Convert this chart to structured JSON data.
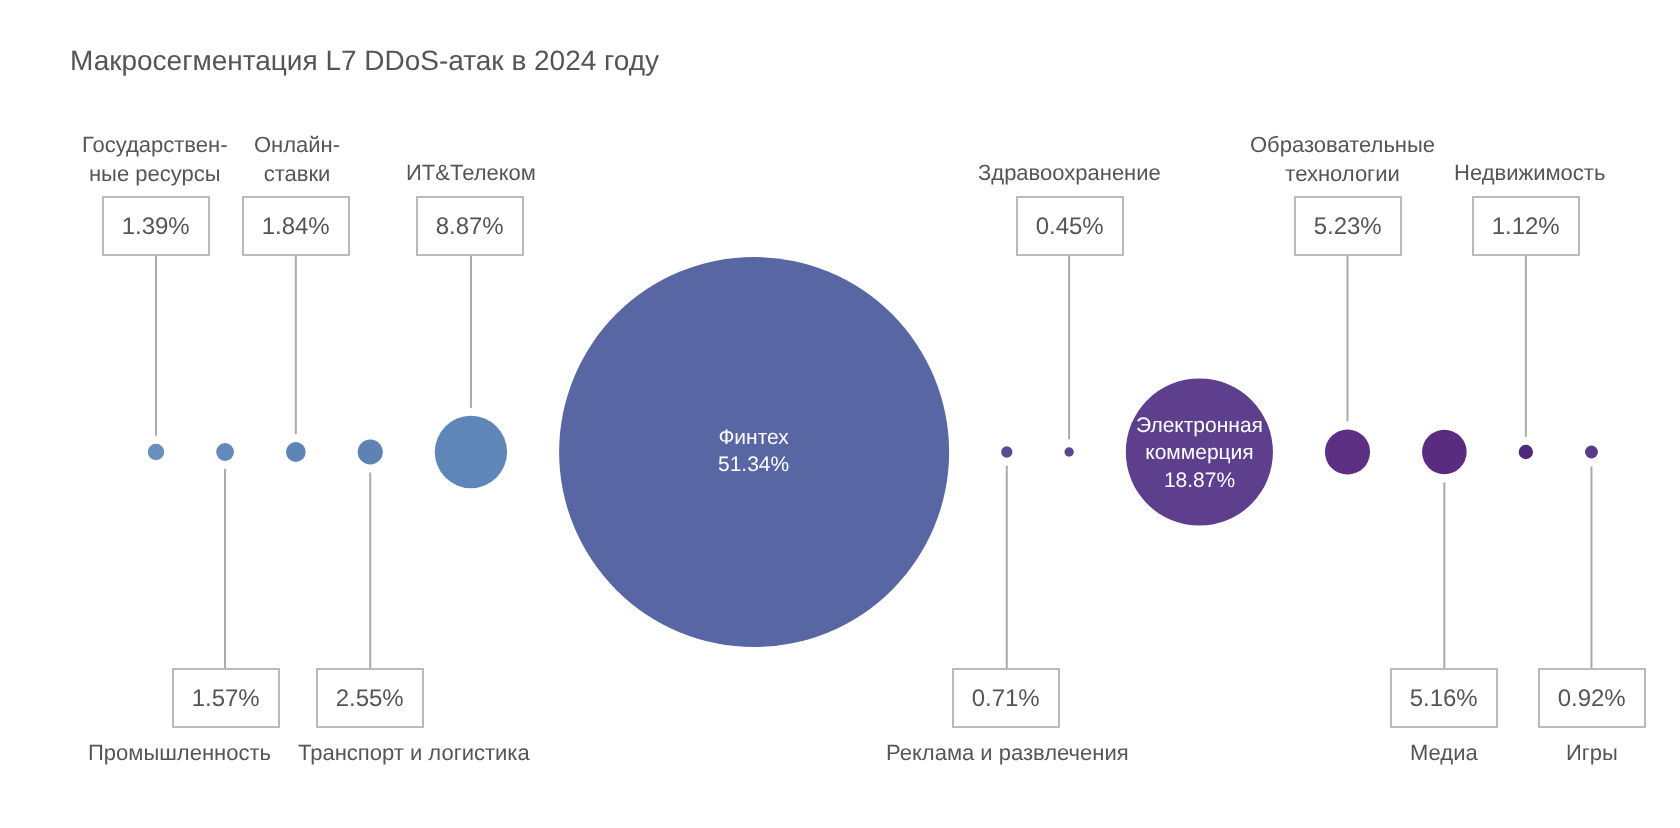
{
  "chart_data": {
    "type": "other",
    "title": "Макросегментация L7 DDoS-атак в 2024 году",
    "categories": [
      "Государствен-\nные ресурсы",
      "Промышленность",
      "Онлайн-\nставки",
      "Транспорт и логистика",
      "ИТ&Телеком",
      "Финтех",
      "Реклама и развлечения",
      "Здравоохранение",
      "Электронная\nкоммерция",
      "Образовательные\nтехнологии",
      "Медиа",
      "Недвижимость",
      "Игры"
    ],
    "values": [
      1.39,
      1.57,
      1.84,
      2.55,
      8.87,
      51.34,
      0.71,
      0.45,
      18.87,
      5.23,
      5.16,
      1.12,
      0.92
    ],
    "value_labels": [
      "1.39%",
      "1.57%",
      "1.84%",
      "2.55%",
      "8.87%",
      "51.34%",
      "0.71%",
      "0.45%",
      "18.87%",
      "5.23%",
      "5.16%",
      "1.12%",
      "0.92%"
    ],
    "colors": [
      "#6a8fbf",
      "#6389ba",
      "#5f85b7",
      "#5f82b5",
      "#5f86b8",
      "#5866a3",
      "#5a4a94",
      "#5b4592",
      "#5e3f8e",
      "#5c2f83",
      "#5a2c80",
      "#4e2a78",
      "#5b3a8a"
    ]
  }
}
